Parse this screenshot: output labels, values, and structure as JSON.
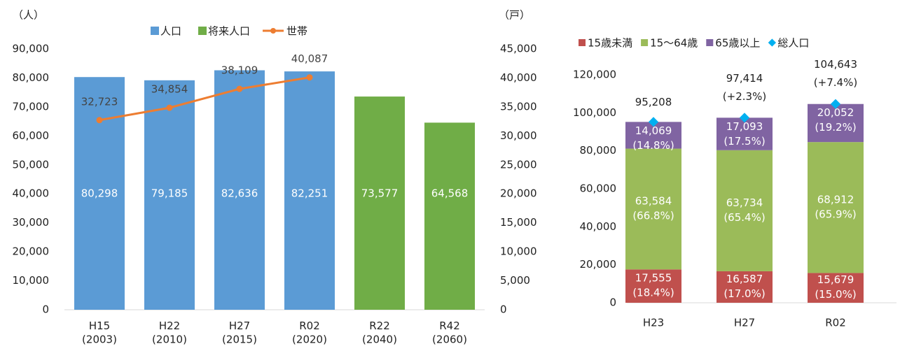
{
  "chart_data": [
    {
      "type": "bar_line",
      "y_label": "（人）",
      "y2_label": "（戸）",
      "categories": [
        "H15\n(2003)",
        "H22\n(2010)",
        "H27\n(2015)",
        "R02\n(2020)",
        "R22\n(2040)",
        "R42\n(2060)"
      ],
      "series": [
        {
          "name": "人口",
          "type": "bar",
          "color": "#5b9bd5",
          "values": [
            80298,
            79185,
            82636,
            82251,
            null,
            null
          ],
          "value_labels": [
            "80,298",
            "79,185",
            "82,636",
            "82,251",
            null,
            null
          ]
        },
        {
          "name": "将来人口",
          "type": "bar",
          "color": "#70ad47",
          "values": [
            null,
            null,
            null,
            null,
            73577,
            64568
          ],
          "value_labels": [
            null,
            null,
            null,
            null,
            "73,577",
            "64,568"
          ]
        },
        {
          "name": "世帯",
          "type": "line",
          "axis": "y2",
          "color": "#ed7d31",
          "values": [
            32723,
            34854,
            38109,
            40087,
            null,
            null
          ],
          "value_labels": [
            "32,723",
            "34,854",
            "38,109",
            "40,087",
            null,
            null
          ]
        }
      ],
      "ylim": [
        0,
        90000
      ],
      "yticks": [
        0,
        {
          "value": 10000,
          "label": "10,000"
        },
        {
          "value": 20000,
          "label": "20,000"
        },
        {
          "value": 30000,
          "label": "30,000"
        },
        {
          "value": 40000,
          "label": "40,000"
        },
        {
          "value": 50000,
          "label": "50,000"
        },
        {
          "value": 60000,
          "label": "60,000"
        },
        {
          "value": 70000,
          "label": "70,000"
        },
        {
          "value": 80000,
          "label": "80,000"
        },
        {
          "value": 90000,
          "label": "90,000"
        }
      ],
      "y2lim": [
        0,
        45000
      ],
      "y2ticks": [
        0,
        {
          "value": 5000,
          "label": "5,000"
        },
        {
          "value": 10000,
          "label": "10,000"
        },
        {
          "value": 15000,
          "label": "15,000"
        },
        {
          "value": 20000,
          "label": "20,000"
        },
        {
          "value": 25000,
          "label": "25,000"
        },
        {
          "value": 30000,
          "label": "30,000"
        },
        {
          "value": 35000,
          "label": "35,000"
        },
        {
          "value": 40000,
          "label": "40,000"
        },
        {
          "value": 45000,
          "label": "45,000"
        }
      ],
      "grid": false,
      "legend": "top"
    },
    {
      "type": "stacked_bar",
      "categories": [
        "H23",
        "H27",
        "R02"
      ],
      "series": [
        {
          "name": "15歳未満",
          "color": "#c0504d",
          "values": [
            17555,
            16587,
            15679
          ],
          "value_labels": [
            "17,555",
            "16,587",
            "15,679"
          ],
          "share_labels": [
            "(18.4%)",
            "(17.0%)",
            "(15.0%)"
          ]
        },
        {
          "name": "15～64歳",
          "color": "#9bbb59",
          "values": [
            63584,
            63734,
            68912
          ],
          "value_labels": [
            "63,584",
            "63,734",
            "68,912"
          ],
          "share_labels": [
            "(66.8%)",
            "(65.4%)",
            "(65.9%)"
          ]
        },
        {
          "name": "65歳以上",
          "color": "#8064a2",
          "values": [
            14069,
            17093,
            20052
          ],
          "value_labels": [
            "14,069",
            "17,093",
            "20,052"
          ],
          "share_labels": [
            "(14.8%)",
            "(17.5%)",
            "(19.2%)"
          ]
        }
      ],
      "total": {
        "name": "総人口",
        "color": "#00b0f0",
        "values": [
          95208,
          97414,
          104643
        ],
        "value_labels": [
          "95,208",
          "97,414",
          "104,643"
        ],
        "change_labels": [
          null,
          "(+2.3%)",
          "(+7.4%)"
        ]
      },
      "ylim": [
        0,
        120000
      ],
      "yticks": [
        0,
        {
          "value": 20000,
          "label": "20,000"
        },
        {
          "value": 40000,
          "label": "40,000"
        },
        {
          "value": 60000,
          "label": "60,000"
        },
        {
          "value": 80000,
          "label": "80,000"
        },
        {
          "value": 100000,
          "label": "100,000"
        },
        {
          "value": 120000,
          "label": "120,000"
        }
      ],
      "grid": false,
      "legend": "top"
    }
  ]
}
